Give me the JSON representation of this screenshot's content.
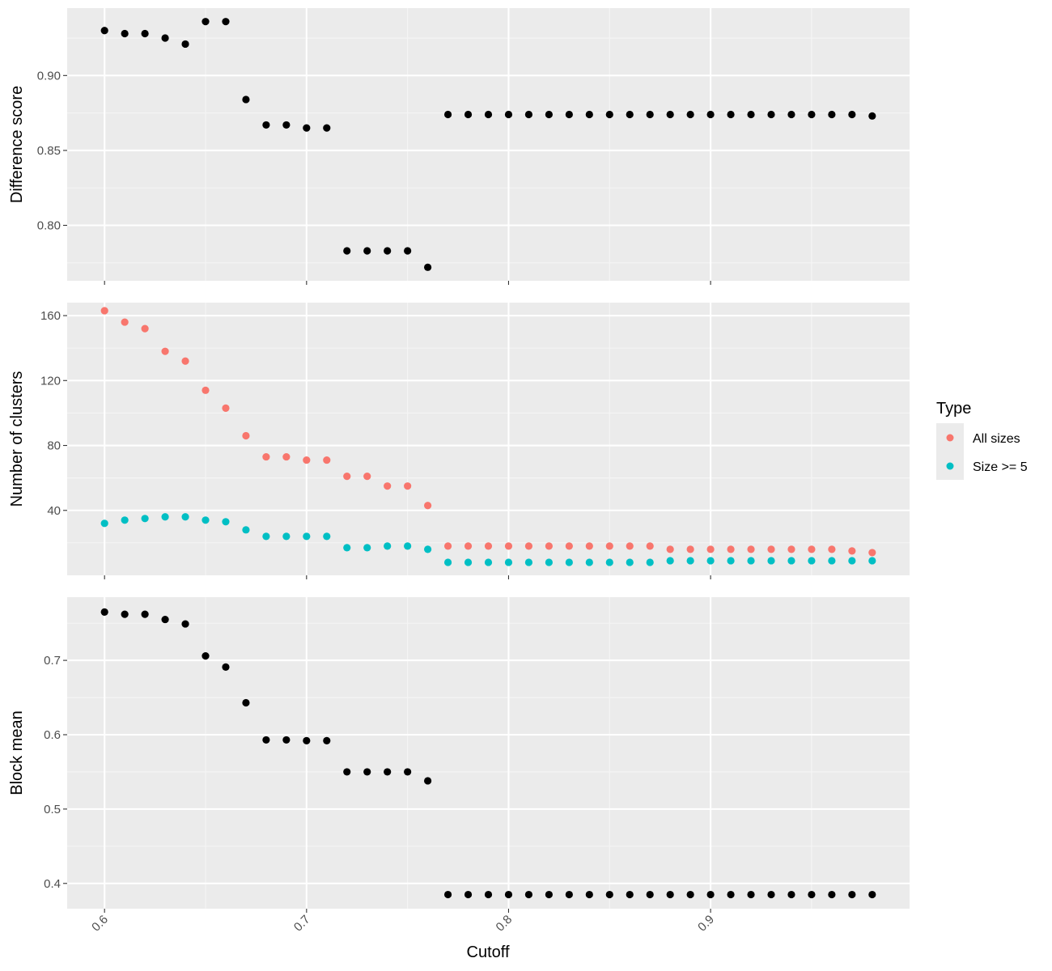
{
  "chart_data": {
    "type": "scatter",
    "facets": "stacked-vertical",
    "grid": true,
    "legend_placement": "right",
    "xlabel": "Cutoff",
    "x_ticks": [
      "0.6",
      "0.7",
      "0.8",
      "0.9"
    ],
    "x_tick_values": [
      0.6,
      0.7,
      0.8,
      0.9
    ],
    "xlim": [
      0.5815,
      0.9985
    ],
    "legend": {
      "title": "Type",
      "entries": [
        {
          "label": "All sizes",
          "color": "#F8766D"
        },
        {
          "label": "Size >= 5",
          "color": "#00BFC4"
        }
      ]
    },
    "panels": [
      {
        "ylabel": "Difference score",
        "ylim": [
          0.763,
          0.945
        ],
        "y_ticks": [
          "0.80",
          "0.85",
          "0.90"
        ],
        "y_tick_values": [
          0.8,
          0.85,
          0.9
        ],
        "series": [
          {
            "color": "#000000",
            "x": [
              0.6,
              0.61,
              0.62,
              0.63,
              0.64,
              0.65,
              0.66,
              0.67,
              0.68,
              0.69,
              0.7,
              0.71,
              0.72,
              0.73,
              0.74,
              0.75,
              0.76,
              0.77,
              0.78,
              0.79,
              0.8,
              0.81,
              0.82,
              0.83,
              0.84,
              0.85,
              0.86,
              0.87,
              0.88,
              0.89,
              0.9,
              0.91,
              0.92,
              0.93,
              0.94,
              0.95,
              0.96,
              0.97,
              0.98
            ],
            "y": [
              0.93,
              0.928,
              0.928,
              0.925,
              0.921,
              0.936,
              0.936,
              0.884,
              0.867,
              0.867,
              0.865,
              0.865,
              0.783,
              0.783,
              0.783,
              0.783,
              0.772,
              0.874,
              0.874,
              0.874,
              0.874,
              0.874,
              0.874,
              0.874,
              0.874,
              0.874,
              0.874,
              0.874,
              0.874,
              0.874,
              0.874,
              0.874,
              0.874,
              0.874,
              0.874,
              0.874,
              0.874,
              0.874,
              0.873
            ]
          }
        ]
      },
      {
        "ylabel": "Number of clusters",
        "ylim": [
          0,
          168
        ],
        "y_ticks": [
          "40",
          "80",
          "120",
          "160"
        ],
        "y_tick_values": [
          40,
          80,
          120,
          160
        ],
        "series": [
          {
            "name": "All sizes",
            "color": "#F8766D",
            "x": [
              0.6,
              0.61,
              0.62,
              0.63,
              0.64,
              0.65,
              0.66,
              0.67,
              0.68,
              0.69,
              0.7,
              0.71,
              0.72,
              0.73,
              0.74,
              0.75,
              0.76,
              0.77,
              0.78,
              0.79,
              0.8,
              0.81,
              0.82,
              0.83,
              0.84,
              0.85,
              0.86,
              0.87,
              0.88,
              0.89,
              0.9,
              0.91,
              0.92,
              0.93,
              0.94,
              0.95,
              0.96,
              0.97,
              0.98
            ],
            "y": [
              163,
              156,
              152,
              138,
              132,
              114,
              103,
              86,
              73,
              73,
              71,
              71,
              61,
              61,
              55,
              55,
              43,
              18,
              18,
              18,
              18,
              18,
              18,
              18,
              18,
              18,
              18,
              18,
              16,
              16,
              16,
              16,
              16,
              16,
              16,
              16,
              16,
              15,
              14
            ]
          },
          {
            "name": "Size >= 5",
            "color": "#00BFC4",
            "x": [
              0.6,
              0.61,
              0.62,
              0.63,
              0.64,
              0.65,
              0.66,
              0.67,
              0.68,
              0.69,
              0.7,
              0.71,
              0.72,
              0.73,
              0.74,
              0.75,
              0.76,
              0.77,
              0.78,
              0.79,
              0.8,
              0.81,
              0.82,
              0.83,
              0.84,
              0.85,
              0.86,
              0.87,
              0.88,
              0.89,
              0.9,
              0.91,
              0.92,
              0.93,
              0.94,
              0.95,
              0.96,
              0.97,
              0.98
            ],
            "y": [
              32,
              34,
              35,
              36,
              36,
              34,
              33,
              28,
              24,
              24,
              24,
              24,
              17,
              17,
              18,
              18,
              16,
              8,
              8,
              8,
              8,
              8,
              8,
              8,
              8,
              8,
              8,
              8,
              9,
              9,
              9,
              9,
              9,
              9,
              9,
              9,
              9,
              9,
              9
            ]
          }
        ]
      },
      {
        "ylabel": "Block mean",
        "ylim": [
          0.366,
          0.785
        ],
        "y_ticks": [
          "0.4",
          "0.5",
          "0.6",
          "0.7"
        ],
        "y_tick_values": [
          0.4,
          0.5,
          0.6,
          0.7
        ],
        "series": [
          {
            "color": "#000000",
            "x": [
              0.6,
              0.61,
              0.62,
              0.63,
              0.64,
              0.65,
              0.66,
              0.67,
              0.68,
              0.69,
              0.7,
              0.71,
              0.72,
              0.73,
              0.74,
              0.75,
              0.76,
              0.77,
              0.78,
              0.79,
              0.8,
              0.81,
              0.82,
              0.83,
              0.84,
              0.85,
              0.86,
              0.87,
              0.88,
              0.89,
              0.9,
              0.91,
              0.92,
              0.93,
              0.94,
              0.95,
              0.96,
              0.97,
              0.98
            ],
            "y": [
              0.765,
              0.762,
              0.762,
              0.755,
              0.749,
              0.706,
              0.691,
              0.643,
              0.593,
              0.593,
              0.592,
              0.592,
              0.55,
              0.55,
              0.55,
              0.55,
              0.538,
              0.385,
              0.385,
              0.385,
              0.385,
              0.385,
              0.385,
              0.385,
              0.385,
              0.385,
              0.385,
              0.385,
              0.385,
              0.385,
              0.385,
              0.385,
              0.385,
              0.385,
              0.385,
              0.385,
              0.385,
              0.385,
              0.385
            ]
          }
        ]
      }
    ]
  }
}
